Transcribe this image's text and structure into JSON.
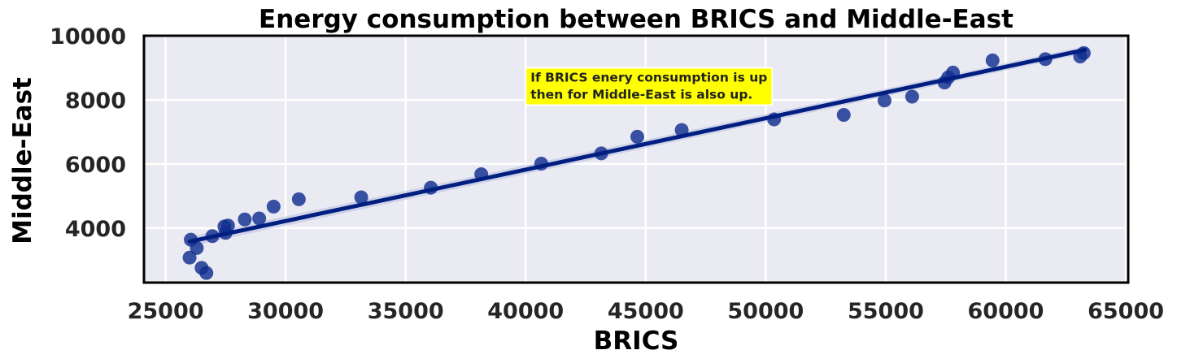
{
  "chart_data": {
    "type": "scatter",
    "title": "Energy consumption between BRICS and Middle-East",
    "xlabel": "BRICS",
    "ylabel": "Middle-East",
    "xlim": [
      24100,
      65100
    ],
    "ylim": [
      2300,
      10000
    ],
    "xticks": [
      25000,
      30000,
      35000,
      40000,
      45000,
      50000,
      55000,
      60000,
      65000
    ],
    "yticks": [
      4000,
      6000,
      8000,
      10000
    ],
    "grid": true,
    "annotation": {
      "lines": [
        "If BRICS enery consumption is up",
        "then for Middle-East is also up."
      ],
      "x": 40000,
      "y_top": 9000,
      "background": "#ffff00"
    },
    "regression": {
      "x_start": 26000,
      "y_start": 3580,
      "x_end": 63300,
      "y_end": 9560
    },
    "colors": {
      "background": "#eaeaf2",
      "points": "#112e8f",
      "line": "#001f80",
      "grid": "#ffffff",
      "ci_band": "#b8bde0"
    },
    "points": [
      {
        "x": 26050,
        "y": 3640
      },
      {
        "x": 26000,
        "y": 3080
      },
      {
        "x": 26300,
        "y": 3380
      },
      {
        "x": 26500,
        "y": 2760
      },
      {
        "x": 26700,
        "y": 2600
      },
      {
        "x": 26950,
        "y": 3750
      },
      {
        "x": 27450,
        "y": 4050
      },
      {
        "x": 27600,
        "y": 4080
      },
      {
        "x": 27500,
        "y": 3850
      },
      {
        "x": 28300,
        "y": 4270
      },
      {
        "x": 28900,
        "y": 4300
      },
      {
        "x": 29500,
        "y": 4670
      },
      {
        "x": 30550,
        "y": 4900
      },
      {
        "x": 33150,
        "y": 4960
      },
      {
        "x": 36050,
        "y": 5260
      },
      {
        "x": 38150,
        "y": 5680
      },
      {
        "x": 40650,
        "y": 6010
      },
      {
        "x": 43150,
        "y": 6330
      },
      {
        "x": 44650,
        "y": 6850
      },
      {
        "x": 46500,
        "y": 7060
      },
      {
        "x": 50350,
        "y": 7390
      },
      {
        "x": 53250,
        "y": 7530
      },
      {
        "x": 54950,
        "y": 7980
      },
      {
        "x": 56100,
        "y": 8100
      },
      {
        "x": 57450,
        "y": 8540
      },
      {
        "x": 57600,
        "y": 8700
      },
      {
        "x": 57800,
        "y": 8850
      },
      {
        "x": 59450,
        "y": 9230
      },
      {
        "x": 61650,
        "y": 9270
      },
      {
        "x": 63100,
        "y": 9350
      },
      {
        "x": 63250,
        "y": 9460
      }
    ]
  }
}
